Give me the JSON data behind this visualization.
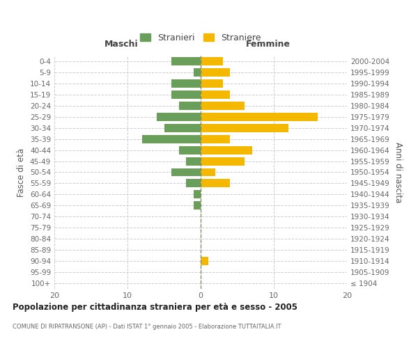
{
  "age_groups": [
    "100+",
    "95-99",
    "90-94",
    "85-89",
    "80-84",
    "75-79",
    "70-74",
    "65-69",
    "60-64",
    "55-59",
    "50-54",
    "45-49",
    "40-44",
    "35-39",
    "30-34",
    "25-29",
    "20-24",
    "15-19",
    "10-14",
    "5-9",
    "0-4"
  ],
  "birth_years": [
    "≤ 1904",
    "1905-1909",
    "1910-1914",
    "1915-1919",
    "1920-1924",
    "1925-1929",
    "1930-1934",
    "1935-1939",
    "1940-1944",
    "1945-1949",
    "1950-1954",
    "1955-1959",
    "1960-1964",
    "1965-1969",
    "1970-1974",
    "1975-1979",
    "1980-1984",
    "1985-1989",
    "1990-1994",
    "1995-1999",
    "2000-2004"
  ],
  "maschi": [
    0,
    0,
    0,
    0,
    0,
    0,
    0,
    1,
    1,
    2,
    4,
    2,
    3,
    8,
    5,
    6,
    3,
    4,
    4,
    1,
    4
  ],
  "femmine": [
    0,
    0,
    1,
    0,
    0,
    0,
    0,
    0,
    0,
    4,
    2,
    6,
    7,
    4,
    12,
    16,
    6,
    4,
    3,
    4,
    3
  ],
  "maschi_color": "#6a9e5b",
  "femmine_color": "#f5b800",
  "background_color": "#ffffff",
  "grid_color": "#cccccc",
  "title": "Popolazione per cittadinanza straniera per età e sesso - 2005",
  "subtitle": "COMUNE DI RIPATRANSONE (AP) - Dati ISTAT 1° gennaio 2005 - Elaborazione TUTTAITALIA.IT",
  "left_header": "Maschi",
  "right_header": "Femmine",
  "ylabel_left": "Fasce di età",
  "ylabel_right": "Anni di nascita",
  "legend_maschi": "Stranieri",
  "legend_femmine": "Straniere",
  "xlim": 20,
  "bar_height": 0.75
}
